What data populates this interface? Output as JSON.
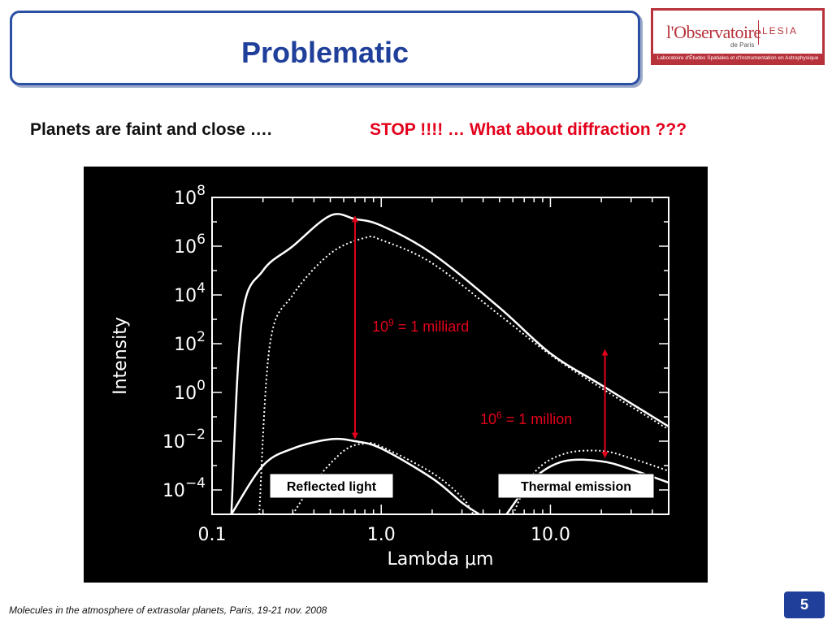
{
  "slide": {
    "title": "Problematic",
    "subtitle": "Planets are faint and close ….",
    "stop_text": "STOP !!!!  … What about diffraction  ???",
    "footer": "Molecules in the atmosphere of extrasolar planets, Paris, 19-21 nov. 2008",
    "page_number": "5"
  },
  "logo": {
    "main": "l'Observatoire",
    "sub": "de Paris",
    "lesia": "LESIA",
    "bar": "Laboratoire d'Études Spatiales et d'Instrumentation en Astrophysique"
  },
  "colors": {
    "title": "#1f3f9a",
    "stop": "#e3001b",
    "annotation": "#e3001b",
    "logo": "#b7323a",
    "plot_background": "#000000",
    "curves": "#ffffff"
  },
  "chart_data": {
    "type": "line",
    "xlabel": "Lambda μm",
    "ylabel": "Intensity",
    "x_scale": "log",
    "y_scale": "log",
    "xlim": [
      0.1,
      50
    ],
    "ylim": [
      1e-05,
      100000000.0
    ],
    "x_ticks": [
      {
        "value": 0.1,
        "label": "0.1"
      },
      {
        "value": 1.0,
        "label": "1.0"
      },
      {
        "value": 10.0,
        "label": "10.0"
      }
    ],
    "y_ticks": [
      {
        "value": 100000000.0,
        "base": "10",
        "exp": "8"
      },
      {
        "value": 1000000.0,
        "base": "10",
        "exp": "6"
      },
      {
        "value": 10000.0,
        "base": "10",
        "exp": "4"
      },
      {
        "value": 100.0,
        "base": "10",
        "exp": "2"
      },
      {
        "value": 1.0,
        "base": "10",
        "exp": "0"
      },
      {
        "value": 0.01,
        "base": "10",
        "exp": "−2"
      },
      {
        "value": 0.0001,
        "base": "10",
        "exp": "−4"
      }
    ],
    "grid": false,
    "series": [
      {
        "style": "solid",
        "points": [
          [
            0.13,
            1e-05
          ],
          [
            0.15,
            1000.0
          ],
          [
            0.2,
            100000.0
          ],
          [
            0.3,
            1000000.0
          ],
          [
            0.5,
            18000000.0
          ],
          [
            0.7,
            13000000.0
          ],
          [
            1,
            7000000.0
          ],
          [
            2,
            500000.0
          ],
          [
            5,
            3000.0
          ],
          [
            10,
            40
          ],
          [
            20,
            2
          ],
          [
            50,
            0.04
          ]
        ]
      },
      {
        "style": "dotted",
        "points": [
          [
            0.19,
            1e-05
          ],
          [
            0.22,
            100.0
          ],
          [
            0.3,
            10000.0
          ],
          [
            0.5,
            500000.0
          ],
          [
            0.8,
            2200000.0
          ],
          [
            1,
            1800000.0
          ],
          [
            2,
            200000.0
          ],
          [
            5,
            1500.0
          ],
          [
            10,
            35
          ],
          [
            20,
            1.5
          ],
          [
            50,
            0.03
          ]
        ]
      },
      {
        "style": "solid",
        "points": [
          [
            0.13,
            1e-05
          ],
          [
            0.2,
            0.001
          ],
          [
            0.3,
            0.005
          ],
          [
            0.5,
            0.012
          ],
          [
            0.7,
            0.01
          ],
          [
            1,
            0.005
          ],
          [
            2,
            0.0003
          ],
          [
            3,
            3e-05
          ],
          [
            3.8,
            1e-05
          ]
        ]
      },
      {
        "style": "dotted",
        "points": [
          [
            0.3,
            1e-05
          ],
          [
            0.4,
            0.0002
          ],
          [
            0.6,
            0.004
          ],
          [
            0.8,
            0.008
          ],
          [
            1,
            0.006
          ],
          [
            2,
            0.0005
          ],
          [
            3,
            5e-05
          ],
          [
            3.5,
            1e-05
          ]
        ]
      },
      {
        "style": "solid",
        "points": [
          [
            5.5,
            1e-05
          ],
          [
            8,
            0.0003
          ],
          [
            12,
            0.0015
          ],
          [
            20,
            0.0015
          ],
          [
            30,
            0.0007
          ],
          [
            50,
            0.0002
          ]
        ]
      },
      {
        "style": "dotted",
        "points": [
          [
            6,
            1e-05
          ],
          [
            8,
            0.0005
          ],
          [
            12,
            0.003
          ],
          [
            20,
            0.004
          ],
          [
            30,
            0.002
          ],
          [
            50,
            0.0006
          ]
        ]
      }
    ],
    "annotations": [
      {
        "label_base": "10",
        "label_exp": "9",
        "label_rest": " = 1 milliard",
        "x": 0.7,
        "y_from": 18000000.0,
        "y_to": 0.012
      },
      {
        "label_base": "10",
        "label_exp": "6",
        "label_rest": " = 1 million",
        "x": 21,
        "y_from": 60,
        "y_to": 0.002
      }
    ],
    "boxes": [
      "Reflected light",
      "Thermal emission"
    ]
  }
}
